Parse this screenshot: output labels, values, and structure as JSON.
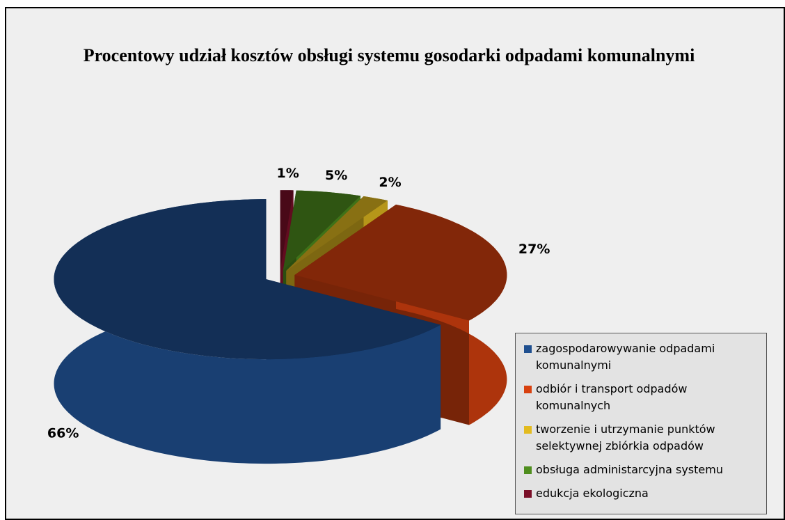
{
  "chart_data": {
    "type": "pie3d",
    "title": "Procentowy udział kosztów obsługi systemu gosodarki odpadami komunalnymi",
    "categories": [
      "zagospodarowywanie odpadami komunalnymi",
      "odbiór i transport odpadów komunalnych",
      "tworzenie i utrzymanie punktów selektywnej zbiórkia odpadów",
      "obsługa administarcyjna systemu",
      "edukcja ekologiczna"
    ],
    "values": [
      66,
      27,
      2,
      5,
      1
    ],
    "value_labels": [
      "66%",
      "27%",
      "2%",
      "5%",
      "1%"
    ],
    "colors": [
      "#1f4f8f",
      "#d8410f",
      "#e3bb1f",
      "#4f8e1e",
      "#7a0f28"
    ],
    "legend": "bottom-right"
  }
}
